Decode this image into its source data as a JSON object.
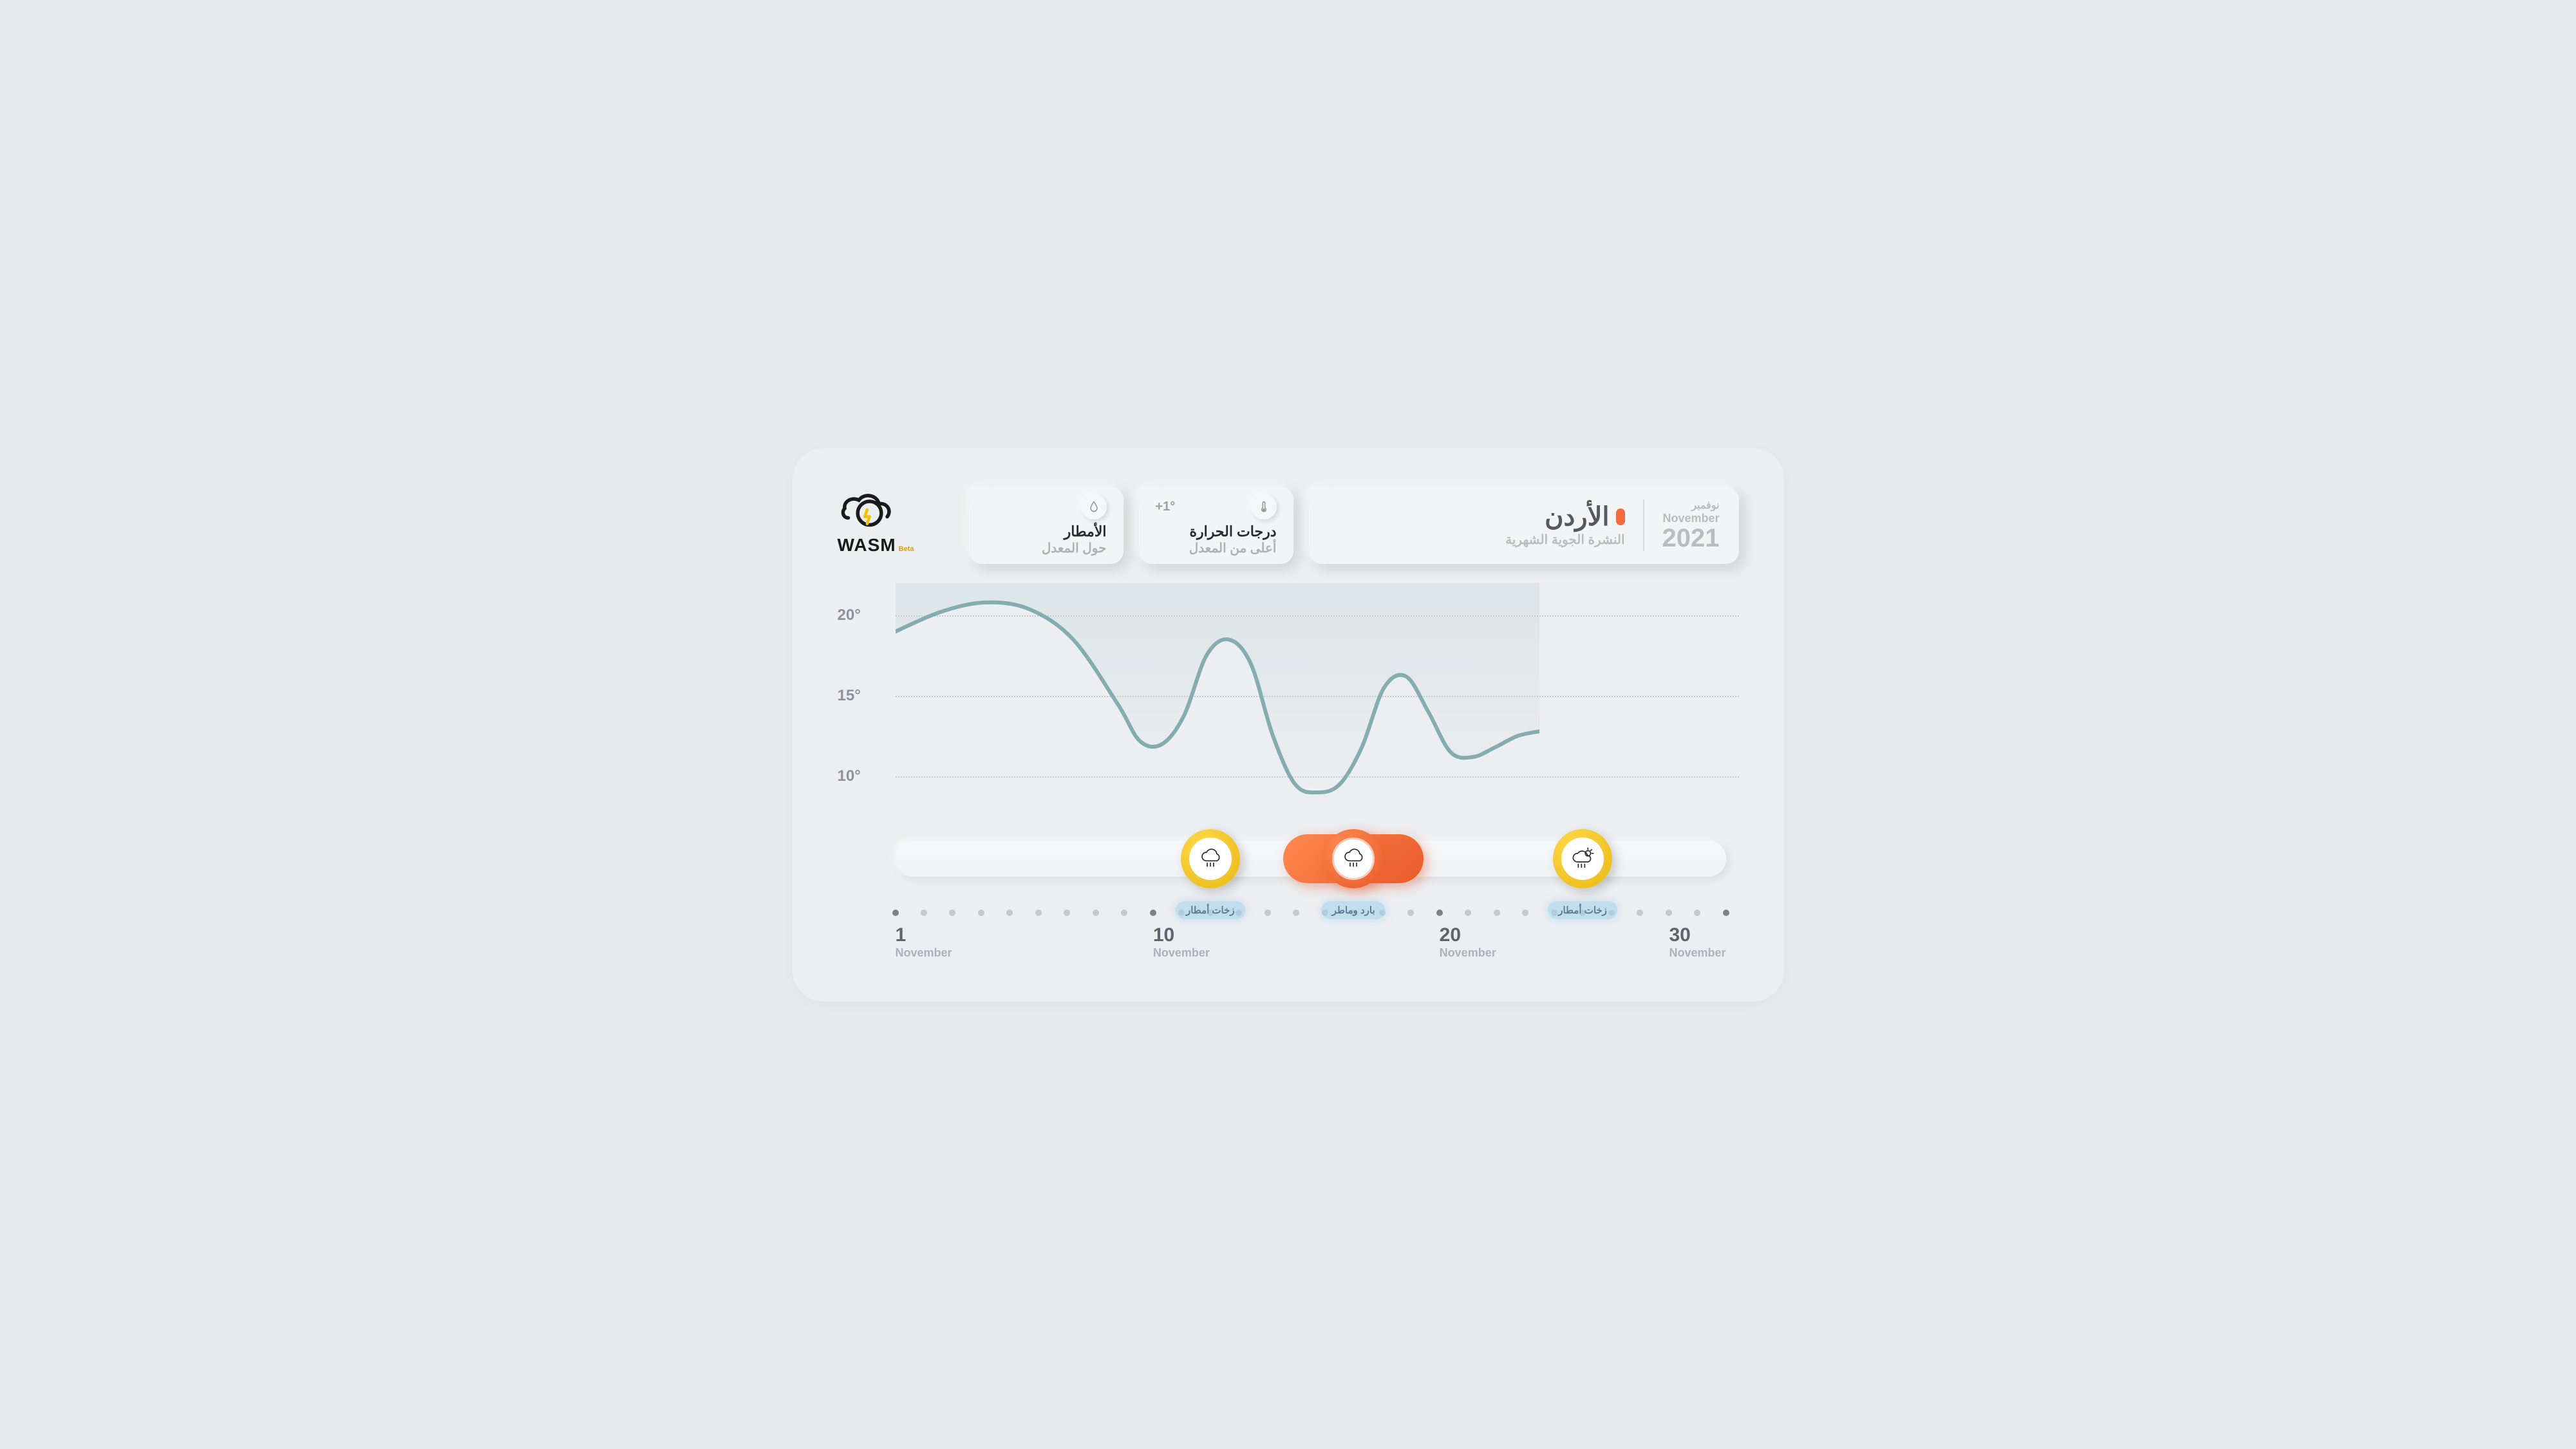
{
  "logo": {
    "text": "WASM",
    "beta": "Beta"
  },
  "cards": {
    "rain": {
      "title": "الأمطار",
      "sub": "حول المعدل"
    },
    "temp": {
      "title": "درجات الحرارة",
      "sub": "أعلى من المعدل",
      "delta": "+1°"
    }
  },
  "main": {
    "country": "الأردن",
    "subtitle": "النشرة الجوية الشهرية",
    "month_ar": "نوفمبر",
    "month_en": "November",
    "year": "2021"
  },
  "chart": {
    "type": "line",
    "ylim": [
      8,
      22
    ],
    "yticks": [
      20,
      15,
      10
    ],
    "ytick_labels": [
      "20°",
      "15°",
      "10°"
    ],
    "grid_color": "#c7cace",
    "line_color": "#85adb0",
    "line_width": 6,
    "fill_top": "#bdd4d4",
    "fill_opacity": 0.35,
    "background": "#eceef1",
    "x_days": [
      1,
      30
    ],
    "points": [
      {
        "day": 1,
        "t": 19.0
      },
      {
        "day": 3,
        "t": 20.2
      },
      {
        "day": 5,
        "t": 20.8
      },
      {
        "day": 7,
        "t": 20.4
      },
      {
        "day": 9,
        "t": 18.5
      },
      {
        "day": 11,
        "t": 14.5
      },
      {
        "day": 12,
        "t": 12.2
      },
      {
        "day": 13,
        "t": 12.0
      },
      {
        "day": 14,
        "t": 13.8
      },
      {
        "day": 15,
        "t": 17.5
      },
      {
        "day": 16,
        "t": 18.5
      },
      {
        "day": 17,
        "t": 17.0
      },
      {
        "day": 18,
        "t": 12.5
      },
      {
        "day": 19,
        "t": 9.5
      },
      {
        "day": 20,
        "t": 9.0
      },
      {
        "day": 21,
        "t": 9.5
      },
      {
        "day": 22,
        "t": 11.8
      },
      {
        "day": 23,
        "t": 15.5
      },
      {
        "day": 24,
        "t": 16.2
      },
      {
        "day": 25,
        "t": 14.0
      },
      {
        "day": 26,
        "t": 11.5
      },
      {
        "day": 27,
        "t": 11.2
      },
      {
        "day": 28,
        "t": 11.8
      },
      {
        "day": 29,
        "t": 12.5
      },
      {
        "day": 30,
        "t": 12.8
      }
    ]
  },
  "timeline": {
    "dot_color_major": "#7d8187",
    "dot_color_minor": "#c5c8cc",
    "x_labels": [
      {
        "day": 1,
        "label": "1",
        "month": "November",
        "align": "left"
      },
      {
        "day": 10,
        "label": "10",
        "month": "November",
        "align": "left"
      },
      {
        "day": 20,
        "label": "20",
        "month": "November",
        "align": "left"
      },
      {
        "day": 30,
        "label": "30",
        "month": "November",
        "align": "right"
      }
    ],
    "markers": [
      {
        "day": 12,
        "kind": "yellow",
        "icon": "rain",
        "tag": "زخات أمطار"
      },
      {
        "day": 17,
        "kind": "orange",
        "icon": "rain",
        "tag": "بارد وماطر",
        "pill_from": 15,
        "pill_to": 19
      },
      {
        "day": 25,
        "kind": "yellow",
        "icon": "sun-rain",
        "tag": "زخات أمطار"
      }
    ]
  },
  "colors": {
    "card_bg": "#f3f4f6",
    "page_bg": "#eceef1",
    "text_dark": "#2b2b2b",
    "text_muted": "#aeb2b8",
    "accent_orange": "#f26a3d",
    "accent_yellow": "#f2c200",
    "tag_bg": "rgba(160,210,235,0.55)"
  }
}
